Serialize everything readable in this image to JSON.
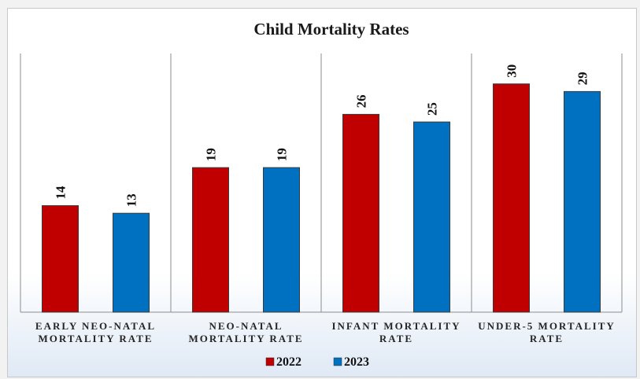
{
  "chart_data": {
    "type": "bar",
    "title": "Child Mortality Rates",
    "categories": [
      [
        "EARLY NEO-NATAL",
        "MORTALITY RATE"
      ],
      [
        "NEO-NATAL",
        "MORTALITY RATE"
      ],
      [
        "INFANT MORTALITY",
        "RATE"
      ],
      [
        "UNDER-5 MORTALITY",
        "RATE"
      ]
    ],
    "series": [
      {
        "name": "2022",
        "color": "#c00000",
        "values": [
          14,
          19,
          26,
          30
        ]
      },
      {
        "name": "2023",
        "color": "#0070c0",
        "values": [
          13,
          19,
          25,
          29
        ]
      }
    ],
    "ylim": [
      0,
      34
    ],
    "grid": false,
    "legend": "bottom-center",
    "data_labels": true
  }
}
